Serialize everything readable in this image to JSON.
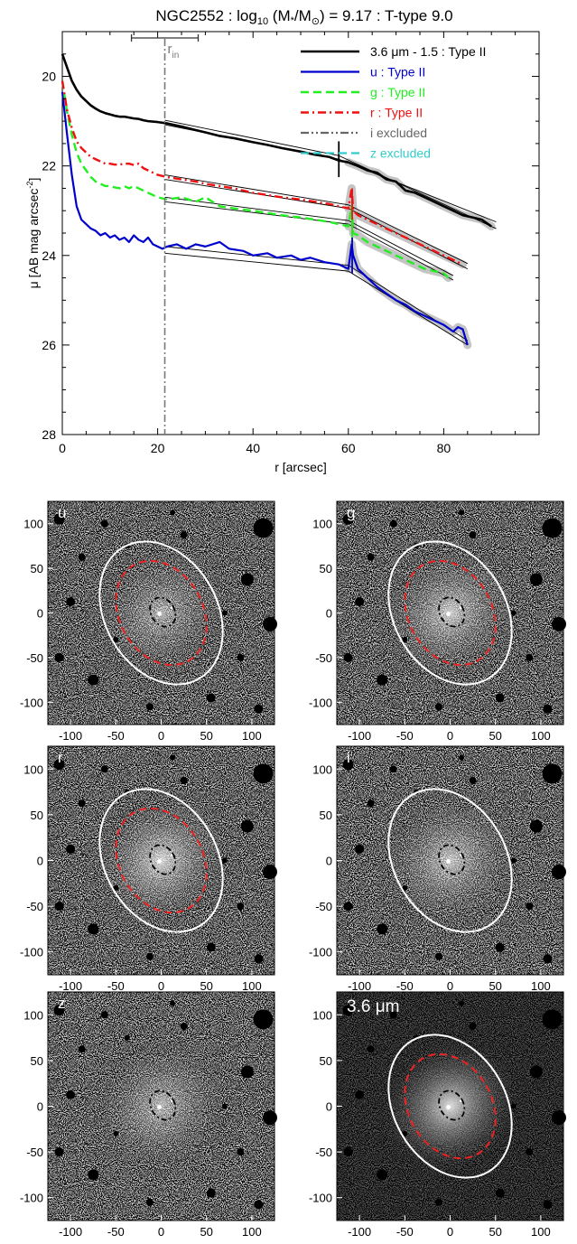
{
  "chart_data": [
    {
      "type": "line",
      "title": "NGC2552 : log10 (M*/M⊙) = 9.17 : T-type 9.0",
      "title_parts": {
        "prefix": "NGC2552 : log",
        "sub": "10",
        "mid": " (M",
        "star": "*",
        "sep": "/M",
        "sun": "⊙",
        "suffix": ") = 9.17 : T-type 9.0"
      },
      "xlabel": "r [arcsec]",
      "ylabel_parts": {
        "main": "μ [AB mag arcsec",
        "sup": "-2",
        "end": "]"
      },
      "xlim": [
        0,
        100
      ],
      "ylim": [
        28,
        19
      ],
      "y_inverted": true,
      "xticks": [
        0,
        20,
        40,
        60,
        80
      ],
      "yticks": [
        20,
        22,
        24,
        26,
        28
      ],
      "r_in": {
        "label": "r",
        "sub": "in",
        "value": 21.5,
        "range": [
          14.5,
          28.5
        ]
      },
      "legend_position": "top-right",
      "series": [
        {
          "name": "3.6 μm - 1.5 : Type II",
          "color": "#000000",
          "dash": "solid",
          "width": 2.6,
          "x": [
            0,
            1,
            2,
            3,
            4,
            5,
            6,
            7,
            8,
            9,
            10,
            11,
            12,
            13,
            14,
            15,
            16,
            17,
            18,
            20,
            22,
            25,
            28,
            30,
            33,
            36,
            40,
            43,
            46,
            50,
            53,
            56,
            58,
            60,
            62,
            64,
            66,
            68,
            70,
            72,
            74,
            76,
            78,
            80,
            82,
            84,
            86,
            88,
            90
          ],
          "y": [
            19.5,
            19.8,
            20.1,
            20.3,
            20.45,
            20.55,
            20.65,
            20.72,
            20.78,
            20.82,
            20.85,
            20.88,
            20.9,
            20.9,
            20.92,
            20.94,
            20.95,
            20.98,
            21.0,
            21.02,
            21.05,
            21.12,
            21.2,
            21.25,
            21.33,
            21.38,
            21.47,
            21.53,
            21.6,
            21.68,
            21.75,
            21.8,
            21.88,
            21.92,
            22.0,
            22.1,
            22.15,
            22.3,
            22.35,
            22.55,
            22.6,
            22.7,
            22.8,
            22.9,
            23.0,
            23.1,
            23.15,
            23.2,
            23.35
          ]
        },
        {
          "name": "u : Type II",
          "color": "#0000cc",
          "dash": "solid",
          "width": 2.2,
          "x": [
            0,
            1,
            2,
            3,
            4,
            5,
            6,
            7,
            8,
            9,
            10,
            11,
            12,
            13,
            14,
            15,
            16,
            17,
            18,
            19,
            20,
            21,
            22,
            24,
            26,
            28,
            30,
            33,
            35,
            38,
            40,
            43,
            45,
            48,
            50,
            52,
            55,
            58,
            60,
            60.7,
            61,
            62,
            64,
            66,
            68,
            70,
            72,
            74,
            76,
            78,
            80,
            82,
            83,
            84,
            85
          ],
          "y": [
            20.35,
            21.3,
            22.2,
            22.9,
            23.2,
            23.3,
            23.4,
            23.45,
            23.55,
            23.5,
            23.6,
            23.55,
            23.65,
            23.6,
            23.7,
            23.55,
            23.65,
            23.7,
            23.6,
            23.75,
            23.8,
            23.85,
            23.8,
            23.75,
            23.85,
            23.75,
            23.8,
            23.7,
            23.85,
            23.9,
            24.0,
            23.95,
            24.05,
            24.0,
            24.1,
            24.05,
            24.15,
            24.2,
            24.3,
            23.75,
            24.0,
            24.3,
            24.5,
            24.7,
            24.85,
            25.0,
            25.1,
            25.25,
            25.35,
            25.45,
            25.55,
            25.7,
            25.6,
            25.65,
            26.0
          ]
        },
        {
          "name": "g : Type II",
          "color": "#22ee22",
          "dash": "dashed",
          "width": 2.4,
          "x": [
            0,
            1,
            2,
            3,
            4,
            5,
            6,
            7,
            8,
            9,
            10,
            11,
            12,
            13,
            14,
            15,
            16,
            17,
            18,
            20,
            22,
            25,
            28,
            30,
            33,
            36,
            40,
            43,
            46,
            50,
            53,
            56,
            58,
            60,
            60.7,
            61,
            62,
            64,
            66,
            68,
            70,
            72,
            74,
            76,
            78,
            80,
            81
          ],
          "y": [
            20.1,
            20.8,
            21.3,
            21.7,
            21.95,
            22.1,
            22.25,
            22.35,
            22.4,
            22.45,
            22.45,
            22.48,
            22.5,
            22.45,
            22.5,
            22.45,
            22.5,
            22.55,
            22.6,
            22.7,
            22.75,
            22.7,
            22.8,
            22.7,
            22.9,
            22.95,
            23.0,
            23.05,
            23.1,
            23.15,
            23.2,
            23.25,
            23.3,
            23.35,
            22.9,
            23.5,
            23.55,
            23.7,
            23.8,
            23.9,
            24.0,
            24.1,
            24.2,
            24.3,
            24.35,
            24.4,
            24.5
          ]
        },
        {
          "name": "r : Type II",
          "color": "#ee1111",
          "dash": "dashdot",
          "width": 2.4,
          "x": [
            0,
            1,
            2,
            3,
            4,
            5,
            6,
            7,
            8,
            9,
            10,
            11,
            12,
            13,
            14,
            15,
            16,
            17,
            18,
            20,
            22,
            25,
            28,
            30,
            33,
            36,
            40,
            43,
            46,
            50,
            53,
            56,
            58,
            60,
            60.7,
            61,
            62,
            64,
            66,
            68,
            70,
            72,
            74,
            76,
            78,
            80,
            82,
            84
          ],
          "y": [
            20.1,
            20.75,
            21.15,
            21.45,
            21.6,
            21.7,
            21.8,
            21.85,
            21.9,
            21.95,
            21.95,
            21.97,
            21.97,
            21.95,
            21.95,
            21.98,
            21.95,
            22.05,
            22.1,
            22.2,
            22.25,
            22.3,
            22.35,
            22.4,
            22.45,
            22.5,
            22.6,
            22.65,
            22.7,
            22.75,
            22.8,
            22.85,
            22.9,
            22.95,
            22.5,
            23.0,
            23.1,
            23.2,
            23.3,
            23.4,
            23.5,
            23.6,
            23.7,
            23.8,
            23.9,
            24.0,
            24.1,
            24.2
          ]
        },
        {
          "name": "i excluded",
          "color": "#666666",
          "dash": "dashdotdot",
          "width": 2.2,
          "x": [],
          "y": []
        },
        {
          "name": "z excluded",
          "color": "#33cccc",
          "dash": "dashed",
          "width": 2.2,
          "x": [],
          "y": []
        }
      ],
      "fits": [
        {
          "x": [
            21.5,
            58,
            91
          ],
          "y": [
            21.08,
            21.85,
            23.25
          ]
        },
        {
          "x": [
            21.5,
            58,
            91
          ],
          "y": [
            20.98,
            21.77,
            23.4
          ]
        },
        {
          "x": [
            21.5,
            60,
            85
          ],
          "y": [
            22.3,
            22.95,
            24.3
          ]
        },
        {
          "x": [
            21.5,
            60,
            85
          ],
          "y": [
            22.2,
            22.87,
            24.18
          ]
        },
        {
          "x": [
            21.5,
            60,
            82
          ],
          "y": [
            22.8,
            23.3,
            24.55
          ]
        },
        {
          "x": [
            21.5,
            60,
            82
          ],
          "y": [
            22.7,
            23.22,
            24.45
          ]
        },
        {
          "x": [
            21.5,
            60,
            85
          ],
          "y": [
            23.95,
            24.35,
            26.0
          ]
        },
        {
          "x": [
            21.5,
            60,
            85
          ],
          "y": [
            23.8,
            24.22,
            25.9
          ]
        }
      ],
      "breaks": [
        {
          "x": 58,
          "y1": 21.45,
          "y2": 22.25,
          "color": "#000000"
        },
        {
          "x": 60.8,
          "y1": 22.5,
          "y2": 23.55,
          "color": "#ee1111"
        },
        {
          "x": 60.8,
          "y1": 23.2,
          "y2": 23.75,
          "color": "#22ee22"
        },
        {
          "x": 60.8,
          "y1": 23.6,
          "y2": 24.4,
          "color": "#0000cc"
        }
      ]
    },
    {
      "type": "image",
      "panels": [
        {
          "label": "u",
          "x_ticks": [
            -100,
            -50,
            0,
            50,
            100
          ],
          "y_ticks": [
            100,
            50,
            0,
            -50,
            -100
          ],
          "outer_ellipse": true,
          "break_ellipse": true,
          "inner_ellipse": true,
          "brightness": 0.55
        },
        {
          "label": "g",
          "x_ticks": [
            -100,
            -50,
            0,
            50,
            100
          ],
          "y_ticks": [
            100,
            50,
            0,
            -50,
            -100
          ],
          "outer_ellipse": true,
          "break_ellipse": true,
          "inner_ellipse": true,
          "brightness": 0.75
        },
        {
          "label": "r",
          "x_ticks": [
            -100,
            -50,
            0,
            50,
            100
          ],
          "y_ticks": [
            100,
            50,
            0,
            -50,
            -100
          ],
          "outer_ellipse": true,
          "break_ellipse": true,
          "inner_ellipse": true,
          "brightness": 0.8
        },
        {
          "label": "i",
          "x_ticks": [
            -100,
            -50,
            0,
            50,
            100
          ],
          "y_ticks": [
            100,
            50,
            0,
            -50,
            -100
          ],
          "outer_ellipse": true,
          "break_ellipse": false,
          "inner_ellipse": true,
          "brightness": 0.7
        },
        {
          "label": "z",
          "x_ticks": [
            -100,
            -50,
            0,
            50,
            100
          ],
          "y_ticks": [
            100,
            50,
            0,
            -50,
            -100
          ],
          "outer_ellipse": false,
          "break_ellipse": false,
          "inner_ellipse": true,
          "brightness": 0.6
        },
        {
          "label": "3.6 μm",
          "x_ticks": [
            -100,
            -50,
            0,
            50,
            100
          ],
          "y_ticks": [
            100,
            50,
            0,
            -50,
            -100
          ],
          "outer_ellipse": true,
          "break_ellipse": true,
          "inner_ellipse": true,
          "brightness": 0.9
        }
      ]
    }
  ]
}
